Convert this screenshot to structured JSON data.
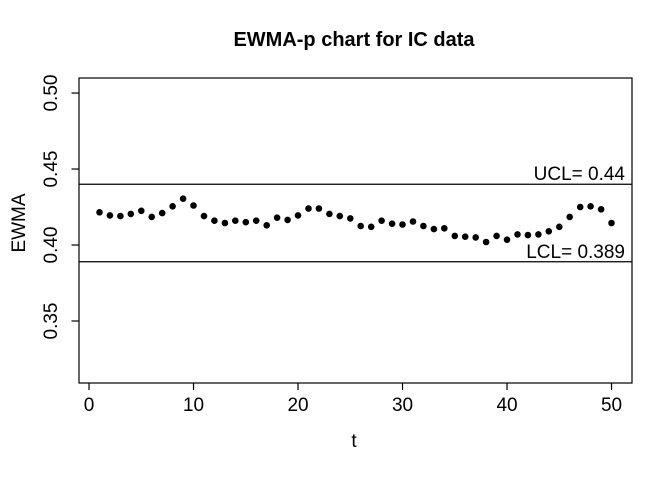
{
  "title": "EWMA-p chart for IC data",
  "chart_data": {
    "type": "scatter",
    "title": "EWMA-p chart for IC data",
    "xlabel": "t",
    "ylabel": "EWMA",
    "legend": null,
    "grid": false,
    "marker": "filled-circle",
    "point_color": "#000000",
    "line_color": "#000000",
    "xlim": [
      -0.96,
      51.96
    ],
    "ylim": [
      0.3092,
      0.5099
    ],
    "x_ticks": [
      {
        "label": "0",
        "value": 0
      },
      {
        "label": "10",
        "value": 10
      },
      {
        "label": "20",
        "value": 20
      },
      {
        "label": "30",
        "value": 30
      },
      {
        "label": "40",
        "value": 40
      },
      {
        "label": "50",
        "value": 50
      }
    ],
    "y_ticks": [
      {
        "label": "0.35",
        "value": 0.35
      },
      {
        "label": "0.40",
        "value": 0.4
      },
      {
        "label": "0.45",
        "value": 0.45
      },
      {
        "label": "0.50",
        "value": 0.5
      }
    ],
    "ucl": {
      "label": "UCL= 0.44",
      "value": 0.44
    },
    "lcl": {
      "label": "LCL= 0.389",
      "value": 0.389
    },
    "x": [
      1,
      2,
      3,
      4,
      5,
      6,
      7,
      8,
      9,
      10,
      11,
      12,
      13,
      14,
      15,
      16,
      17,
      18,
      19,
      20,
      21,
      22,
      23,
      24,
      25,
      26,
      27,
      28,
      29,
      30,
      31,
      32,
      33,
      34,
      35,
      36,
      37,
      38,
      39,
      40,
      41,
      42,
      43,
      44,
      45,
      46,
      47,
      48,
      49,
      50
    ],
    "values": [
      0.4215,
      0.4195,
      0.419,
      0.4205,
      0.4225,
      0.4185,
      0.421,
      0.4255,
      0.4305,
      0.426,
      0.419,
      0.416,
      0.4145,
      0.416,
      0.415,
      0.416,
      0.413,
      0.418,
      0.4165,
      0.4195,
      0.424,
      0.424,
      0.4205,
      0.419,
      0.4175,
      0.4125,
      0.412,
      0.416,
      0.414,
      0.4135,
      0.4155,
      0.4125,
      0.4105,
      0.411,
      0.406,
      0.4055,
      0.405,
      0.402,
      0.406,
      0.4035,
      0.407,
      0.4065,
      0.407,
      0.409,
      0.412,
      0.4185,
      0.425,
      0.4255,
      0.4235,
      0.4145
    ]
  }
}
